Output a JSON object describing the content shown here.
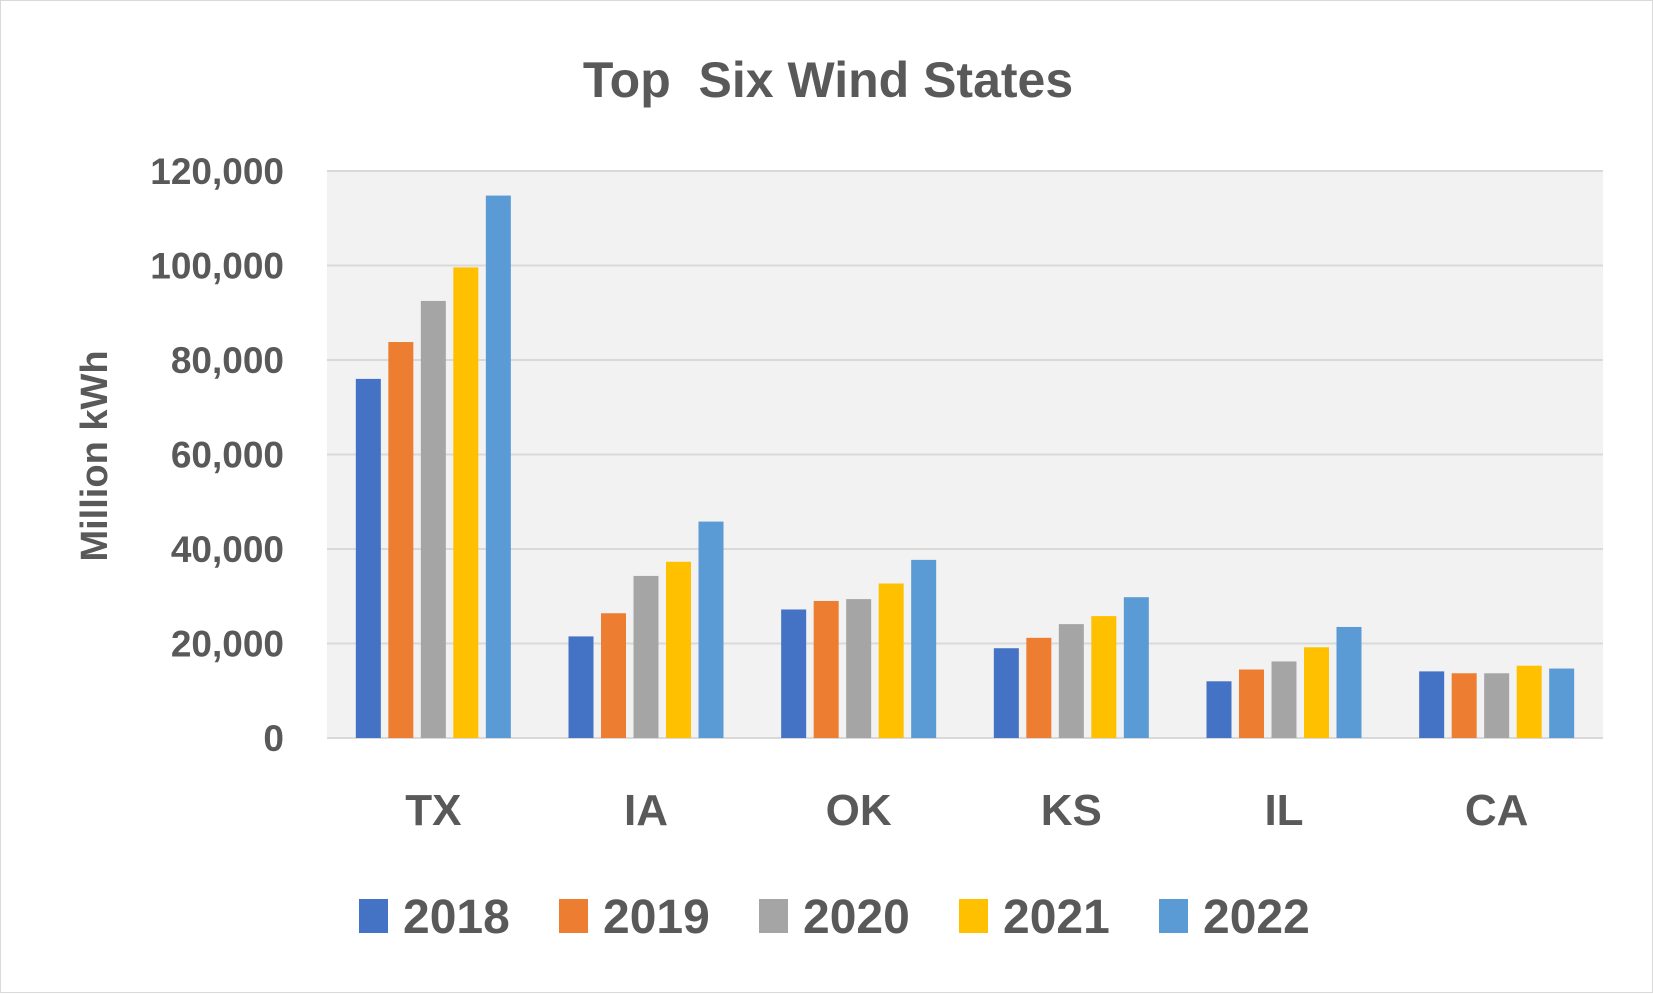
{
  "chart_data": {
    "type": "bar",
    "title": "Top  Six Wind States",
    "xlabel": "",
    "ylabel": "Million kWh",
    "categories": [
      "TX",
      "IA",
      "OK",
      "KS",
      "IL",
      "CA"
    ],
    "series": [
      {
        "name": "2018",
        "color": "#4472c4",
        "values": [
          76000,
          21500,
          27200,
          19000,
          12000,
          14100
        ]
      },
      {
        "name": "2019",
        "color": "#ed7d31",
        "values": [
          83800,
          26400,
          29000,
          21200,
          14500,
          13700
        ]
      },
      {
        "name": "2020",
        "color": "#a5a5a5",
        "values": [
          92500,
          34300,
          29400,
          24100,
          16200,
          13700
        ]
      },
      {
        "name": "2021",
        "color": "#ffc000",
        "values": [
          99600,
          37300,
          32700,
          25800,
          19200,
          15300
        ]
      },
      {
        "name": "2022",
        "color": "#5b9bd5",
        "values": [
          114800,
          45800,
          37700,
          29800,
          23500,
          14700
        ]
      }
    ],
    "ylim": [
      0,
      120000
    ],
    "yticks": [
      0,
      20000,
      40000,
      60000,
      80000,
      100000,
      120000
    ],
    "ytick_labels": [
      "0",
      "20,000",
      "40,000",
      "60,000",
      "80,000",
      "100,000",
      "120,000"
    ],
    "grid": true,
    "plot_background": "#f2f2f2",
    "gridline_color": "#d9d9d9",
    "legend_position": "bottom"
  }
}
